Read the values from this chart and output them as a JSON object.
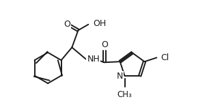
{
  "bg_color": "#ffffff",
  "line_color": "#1a1a1a",
  "line_width": 1.4,
  "figsize": [
    3.25,
    1.58
  ],
  "dpi": 100,
  "xlim": [
    0.0,
    10.0
  ],
  "ylim": [
    0.0,
    5.0
  ]
}
